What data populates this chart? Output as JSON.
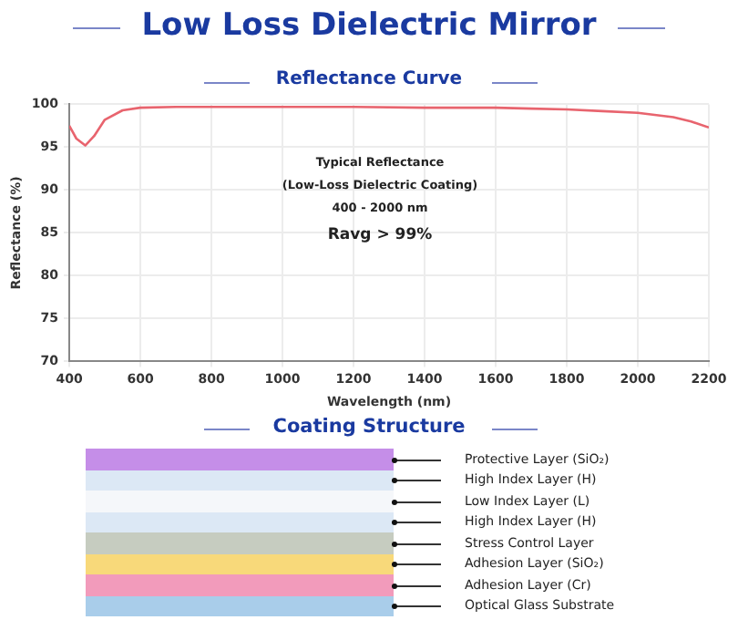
{
  "chart_data": [
    {
      "type": "line",
      "title": "Low Loss Dielectric Mirror",
      "subtitle": "Reflectance Curve",
      "xlabel": "Wavelength (nm)",
      "ylabel": "Reflectance (%)",
      "x": [
        400,
        420,
        445,
        470,
        500,
        550,
        600,
        700,
        800,
        1000,
        1200,
        1400,
        1600,
        1700,
        1800,
        1900,
        2000,
        2100,
        2150,
        2200
      ],
      "series": [
        {
          "color": "#e8646e",
          "values": [
            97.5,
            96.0,
            95.2,
            96.3,
            98.2,
            99.3,
            99.6,
            99.7,
            99.7,
            99.7,
            99.7,
            99.6,
            99.6,
            99.5,
            99.4,
            99.2,
            99.0,
            98.5,
            98.0,
            97.3
          ]
        }
      ],
      "xlim": [
        400,
        2200
      ],
      "xticks": [
        400,
        600,
        800,
        1000,
        1200,
        1400,
        1600,
        1800,
        2000,
        2200
      ],
      "ylim": [
        70,
        100
      ],
      "yticks": [
        70,
        75,
        80,
        85,
        90,
        95,
        100
      ],
      "grid": true,
      "legend": false,
      "marker": "none",
      "line_style": "solid",
      "annotations": [
        "Typical Reflectance",
        "(Low-Loss Dielectric Coating)",
        "400 - 2000 nm",
        "Ravg > 99%"
      ]
    },
    {
      "type": "other",
      "title": "Coating Structure",
      "annotations": [
        "Protective Layer (SiO₂)",
        "High Index Layer (H)",
        "Low Index Layer (L)",
        "High Index Layer (H)",
        "Stress Control Layer",
        "Adhesion Layer (SiO₂)",
        "Adhesion Layer (Cr)",
        "Optical Glass Substrate"
      ]
    }
  ]
}
